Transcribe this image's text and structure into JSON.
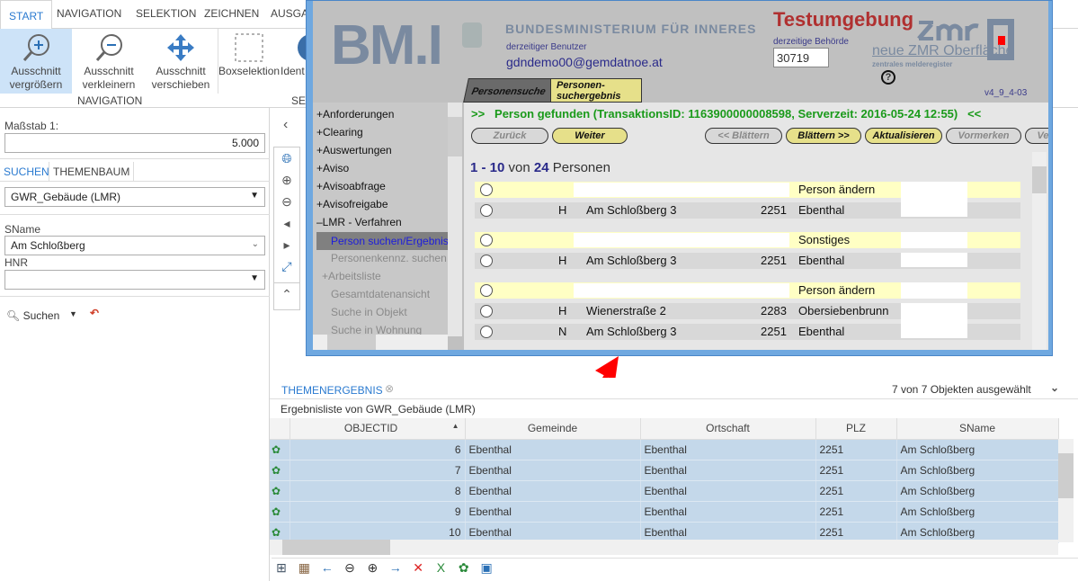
{
  "ribbon": {
    "tabs": [
      "START",
      "NAVIGATION",
      "SELEKTION",
      "ZEICHNEN",
      "AUSGA"
    ],
    "buttons": [
      {
        "l1": "Ausschnitt",
        "l2": "vergrößern"
      },
      {
        "l1": "Ausschnitt",
        "l2": "verkleinern"
      },
      {
        "l1": "Ausschnitt",
        "l2": "verschieben"
      },
      {
        "l1": "Boxselektion",
        "l2": ""
      },
      {
        "l1": "Ident",
        "l2": ""
      }
    ],
    "group_navigation": "NAVIGATION",
    "group_sel": "SEL"
  },
  "left": {
    "scale_label": "Maßstab 1:",
    "scale_value": "5.000",
    "tabs": [
      "SUCHEN",
      "THEMENBAUM"
    ],
    "layer": "GWR_Gebäude (LMR)",
    "sname_label": "SName",
    "sname_value": "Am Schloßberg",
    "hnr_label": "HNR",
    "hnr_value": "",
    "search_label": "Suchen"
  },
  "popup": {
    "ministry": "BUNDESMINISTERIUM FÜR INNERES",
    "logo": "BM.I",
    "env": "Testumgebung",
    "user_label": "derzeitiger Benutzer",
    "user": "gdndemo00@gemdatnoe.at",
    "authority_label": "derzeitige Behörde",
    "authority": "30719",
    "zmr_link": "neue ZMR Oberfläche",
    "zmr_logo": "zmr",
    "zmr_sub": "zentrales melderegister",
    "version": "v4_9_4-03",
    "tabs": [
      "Personensuche",
      "Personen-suchergebnis"
    ],
    "nav": [
      "+Anforderungen",
      "+Clearing",
      "+Auswertungen",
      "+Aviso",
      "+Avisoabfrage",
      "+Avisofreigabe",
      "–LMR - Verfahren",
      "Person suchen/Ergebnis",
      "Personenkennz. suchen",
      "+Arbeitsliste",
      "Gesamtdatenansicht",
      "Suche in Objekt",
      "Suche in Wohnung"
    ],
    "status": ">>   Person gefunden (TransaktionsID: 1163900000008598, Serverzeit: 2016-05-24 12:55)   <<",
    "buttons": [
      "Zurück",
      "Weiter",
      "<< Blättern",
      "Blättern >>",
      "Aktualisieren",
      "Vormerken",
      "Ve"
    ],
    "range": "1 - 10",
    "von": "von",
    "count": "24",
    "personen": "Personen",
    "rows": [
      {
        "type": "head",
        "action": "Person ändern"
      },
      {
        "type": "addr",
        "kind": "H",
        "street": "Am Schloßberg 3",
        "plz": "2251",
        "place": "Ebenthal"
      },
      {
        "type": "head",
        "action": "Sonstiges"
      },
      {
        "type": "addr",
        "kind": "H",
        "street": "Am Schloßberg 3",
        "plz": "2251",
        "place": "Ebenthal"
      },
      {
        "type": "head",
        "action": "Person ändern"
      },
      {
        "type": "addr",
        "kind": "H",
        "street": "Wienerstraße 2",
        "plz": "2283",
        "place": "Obersiebenbrunn"
      },
      {
        "type": "addr",
        "kind": "N",
        "street": "Am Schloßberg 3",
        "plz": "2251",
        "place": "Ebenthal"
      }
    ]
  },
  "results": {
    "tab": "THEMENERGEBNIS",
    "selection": "7 von 7 Objekten ausgewählt",
    "caption": "Ergebnisliste von GWR_Gebäude (LMR)",
    "columns": [
      "OBJECTID",
      "Gemeinde",
      "Ortschaft",
      "PLZ",
      "SName"
    ],
    "rows": [
      [
        "6",
        "Ebenthal",
        "Ebenthal",
        "2251",
        "Am Schloßberg"
      ],
      [
        "7",
        "Ebenthal",
        "Ebenthal",
        "2251",
        "Am Schloßberg"
      ],
      [
        "8",
        "Ebenthal",
        "Ebenthal",
        "2251",
        "Am Schloßberg"
      ],
      [
        "9",
        "Ebenthal",
        "Ebenthal",
        "2251",
        "Am Schloßberg"
      ],
      [
        "10",
        "Ebenthal",
        "Ebenthal",
        "2251",
        "Am Schloßberg"
      ]
    ]
  },
  "colors": {
    "accent": "#2a7ad0",
    "annotation_arrow": "#ff0000",
    "selected_row": "#c4d8ea"
  }
}
